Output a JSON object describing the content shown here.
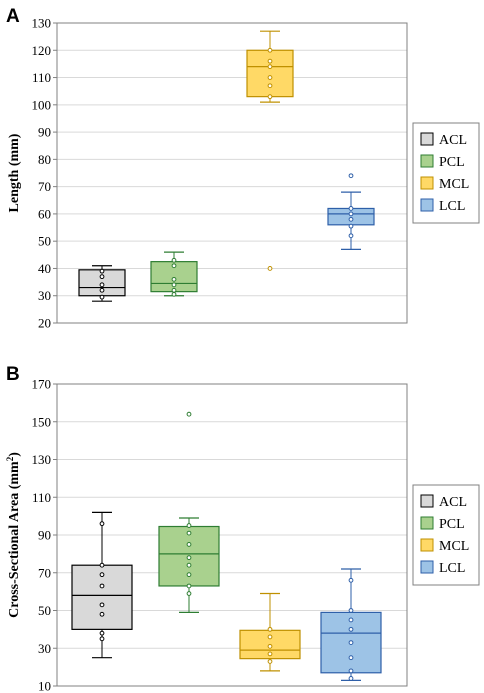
{
  "chart_data": [
    {
      "type": "box",
      "panel_label": "A",
      "ylabel": "Length (mm)",
      "ylim": [
        20,
        130
      ],
      "yticks": [
        20,
        30,
        40,
        50,
        60,
        70,
        80,
        90,
        100,
        110,
        120,
        130
      ],
      "grid": true,
      "legend_position": "right",
      "series": [
        {
          "name": "ACL",
          "color": "#d9d9d9",
          "edge": "#000000",
          "min": 28,
          "q1": 30,
          "median": 33,
          "q3": 39.5,
          "max": 41,
          "points": [
            29.5,
            32,
            34,
            37,
            39
          ],
          "outliers": []
        },
        {
          "name": "PCL",
          "color": "#a9d18e",
          "edge": "#2e7d32",
          "min": 30,
          "q1": 31.5,
          "median": 34.5,
          "q3": 42.5,
          "max": 46,
          "points": [
            30.5,
            32,
            34,
            36,
            41,
            43
          ],
          "outliers": []
        },
        {
          "name": "MCL",
          "color": "#ffd966",
          "edge": "#bf9000",
          "min": 101,
          "q1": 103,
          "median": 114,
          "q3": 120,
          "max": 127,
          "points": [
            103,
            107,
            110,
            114,
            116,
            120
          ],
          "outliers": [
            40
          ]
        },
        {
          "name": "LCL",
          "color": "#9dc3e6",
          "edge": "#2e5fa8",
          "min": 47,
          "q1": 56,
          "median": 60,
          "q3": 62,
          "max": 68,
          "points": [
            52,
            55.5,
            58,
            60,
            62
          ],
          "outliers": [
            74
          ]
        }
      ]
    },
    {
      "type": "box",
      "panel_label": "B",
      "ylabel": "Cross-Sectional Area (mm",
      "ylabel_sup": "2",
      "ylabel_end": ")",
      "ylim": [
        10,
        170
      ],
      "yticks": [
        10,
        30,
        50,
        70,
        90,
        110,
        130,
        150,
        170
      ],
      "grid": true,
      "legend_position": "right",
      "series": [
        {
          "name": "ACL",
          "color": "#d9d9d9",
          "edge": "#000000",
          "min": 25,
          "q1": 40,
          "median": 58,
          "q3": 74,
          "max": 102,
          "points": [
            35,
            38,
            48,
            53,
            63,
            69,
            74,
            96
          ],
          "outliers": []
        },
        {
          "name": "PCL",
          "color": "#a9d18e",
          "edge": "#2e7d32",
          "min": 49,
          "q1": 63,
          "median": 80,
          "q3": 94.5,
          "max": 99,
          "points": [
            59,
            63,
            69,
            74,
            78,
            85,
            91,
            95
          ],
          "outliers": [
            154
          ]
        },
        {
          "name": "MCL",
          "color": "#ffd966",
          "edge": "#bf9000",
          "min": 18,
          "q1": 24.5,
          "median": 29,
          "q3": 39.5,
          "max": 59,
          "points": [
            23,
            27,
            31,
            36,
            40
          ],
          "outliers": []
        },
        {
          "name": "LCL",
          "color": "#9dc3e6",
          "edge": "#2e5fa8",
          "min": 13,
          "q1": 17,
          "median": 38,
          "q3": 49,
          "max": 72,
          "points": [
            14,
            18,
            25,
            33,
            40,
            45,
            50,
            66
          ],
          "outliers": []
        }
      ]
    }
  ]
}
